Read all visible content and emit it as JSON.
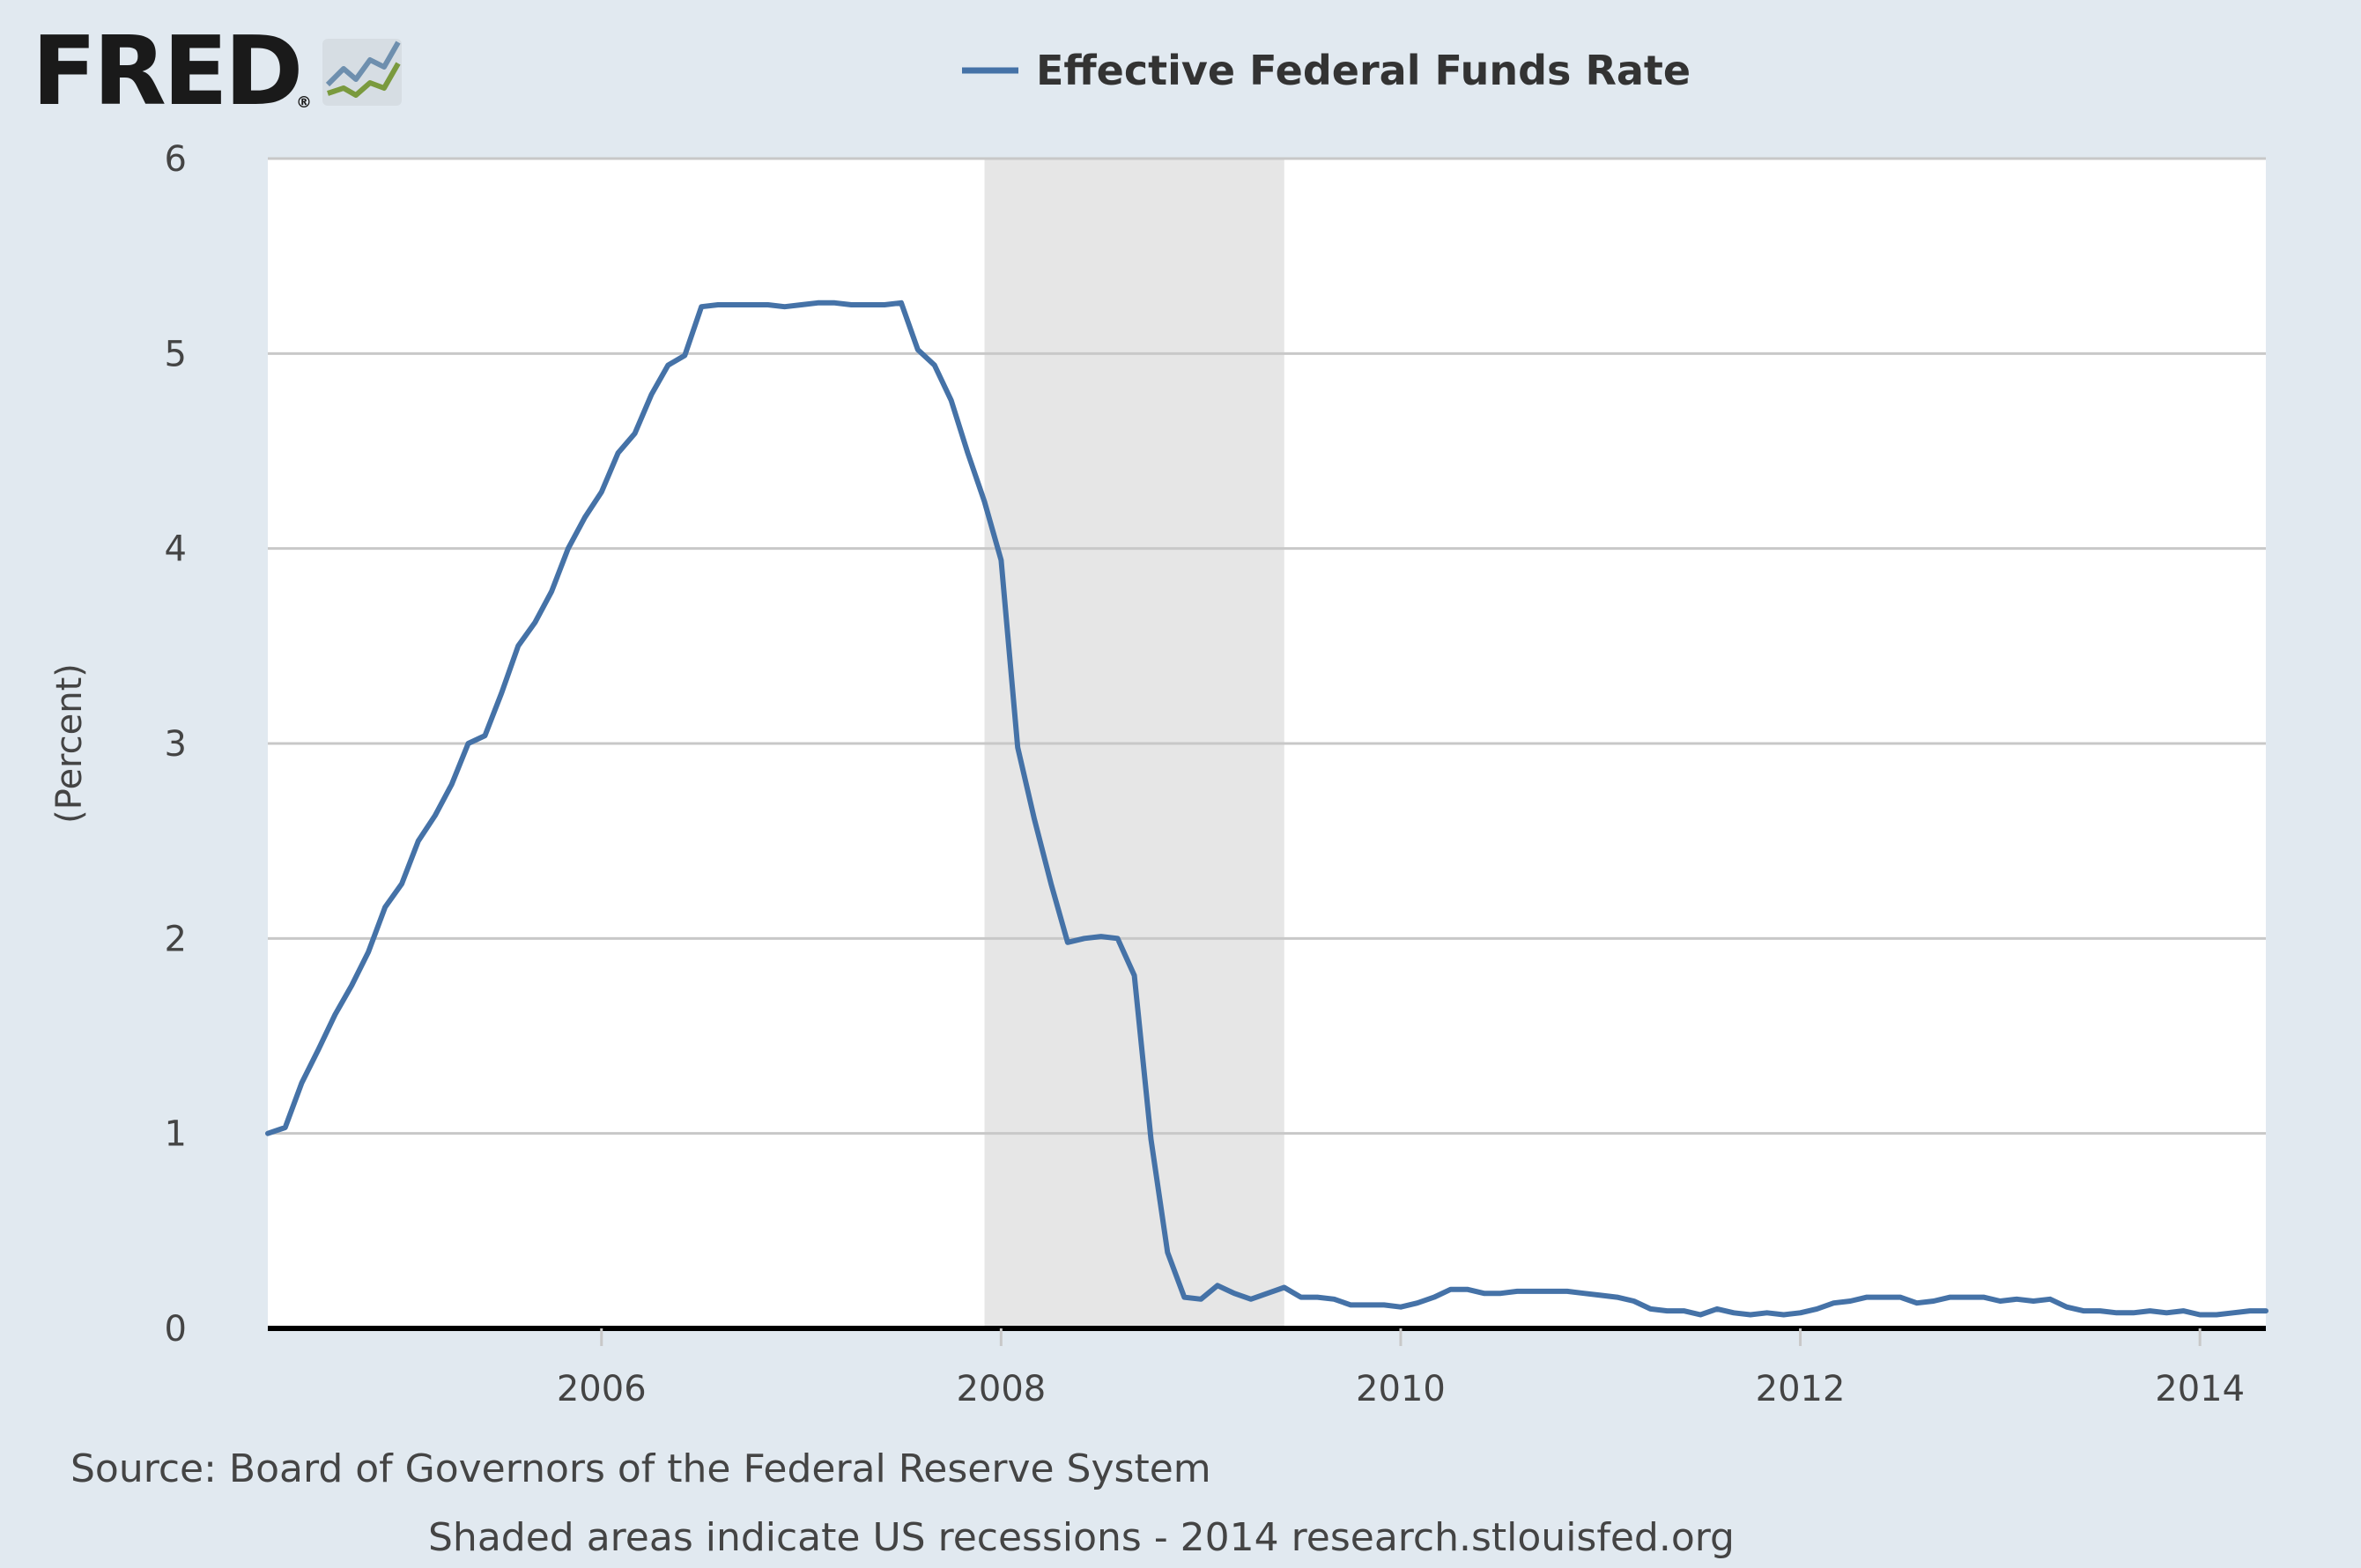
{
  "logo": {
    "text": "FRED",
    "registered": "®",
    "icon": "fred-chart-logo-icon"
  },
  "colors": {
    "background": "#e1e9f0",
    "plot_background": "#ffffff",
    "series": "#4572a7",
    "recession_shade": "#e6e6e6",
    "grid": "#c8c8c8",
    "text": "#444444"
  },
  "footer": {
    "source": "Source: Board of Governors of the Federal Reserve System",
    "note": "Shaded areas indicate US recessions - 2014 research.stlouisfed.org"
  },
  "chart_data": {
    "type": "line",
    "title": "",
    "xlabel": "",
    "ylabel": "(Percent)",
    "xlim": [
      2004.33,
      2014.33
    ],
    "ylim": [
      0,
      6
    ],
    "y_ticks": [
      0,
      1,
      2,
      3,
      4,
      5,
      6
    ],
    "x_ticks": [
      2006,
      2008,
      2010,
      2012,
      2014
    ],
    "x_tick_labels": [
      "2006",
      "2008",
      "2010",
      "2012",
      "2014"
    ],
    "grid": true,
    "legend": {
      "position": "top-center",
      "entries": [
        "Effective Federal Funds Rate"
      ]
    },
    "recessions": [
      {
        "start": 2007.917,
        "end": 2009.417
      }
    ],
    "series": [
      {
        "name": "Effective Federal Funds Rate",
        "x": [
          2004.33,
          2004.417,
          2004.5,
          2004.583,
          2004.667,
          2004.75,
          2004.833,
          2004.917,
          2005.0,
          2005.083,
          2005.167,
          2005.25,
          2005.333,
          2005.417,
          2005.5,
          2005.583,
          2005.667,
          2005.75,
          2005.833,
          2005.917,
          2006.0,
          2006.083,
          2006.167,
          2006.25,
          2006.333,
          2006.417,
          2006.5,
          2006.583,
          2006.667,
          2006.75,
          2006.833,
          2006.917,
          2007.0,
          2007.083,
          2007.167,
          2007.25,
          2007.333,
          2007.417,
          2007.5,
          2007.583,
          2007.667,
          2007.75,
          2007.833,
          2007.917,
          2008.0,
          2008.083,
          2008.167,
          2008.25,
          2008.333,
          2008.417,
          2008.5,
          2008.583,
          2008.667,
          2008.75,
          2008.833,
          2008.917,
          2009.0,
          2009.083,
          2009.167,
          2009.25,
          2009.333,
          2009.417,
          2009.5,
          2009.583,
          2009.667,
          2009.75,
          2009.833,
          2009.917,
          2010.0,
          2010.083,
          2010.167,
          2010.25,
          2010.333,
          2010.417,
          2010.5,
          2010.583,
          2010.667,
          2010.75,
          2010.833,
          2010.917,
          2011.0,
          2011.083,
          2011.167,
          2011.25,
          2011.333,
          2011.417,
          2011.5,
          2011.583,
          2011.667,
          2011.75,
          2011.833,
          2011.917,
          2012.0,
          2012.083,
          2012.167,
          2012.25,
          2012.333,
          2012.417,
          2012.5,
          2012.583,
          2012.667,
          2012.75,
          2012.833,
          2012.917,
          2013.0,
          2013.083,
          2013.167,
          2013.25,
          2013.333,
          2013.417,
          2013.5,
          2013.583,
          2013.667,
          2013.75,
          2013.833,
          2013.917,
          2014.0,
          2014.083,
          2014.167,
          2014.25,
          2014.33
        ],
        "values": [
          1.0,
          1.03,
          1.26,
          1.43,
          1.61,
          1.76,
          1.93,
          2.16,
          2.28,
          2.5,
          2.63,
          2.79,
          3.0,
          3.04,
          3.26,
          3.5,
          3.62,
          3.78,
          4.0,
          4.16,
          4.29,
          4.49,
          4.59,
          4.79,
          4.94,
          4.99,
          5.24,
          5.25,
          5.25,
          5.25,
          5.25,
          5.24,
          5.25,
          5.26,
          5.26,
          5.25,
          5.25,
          5.25,
          5.26,
          5.02,
          4.94,
          4.76,
          4.49,
          4.24,
          3.94,
          2.98,
          2.61,
          2.28,
          1.98,
          2.0,
          2.01,
          2.0,
          1.81,
          0.97,
          0.39,
          0.16,
          0.15,
          0.22,
          0.18,
          0.15,
          0.18,
          0.21,
          0.16,
          0.16,
          0.15,
          0.12,
          0.12,
          0.12,
          0.11,
          0.13,
          0.16,
          0.2,
          0.2,
          0.18,
          0.18,
          0.19,
          0.19,
          0.19,
          0.19,
          0.18,
          0.17,
          0.16,
          0.14,
          0.1,
          0.09,
          0.09,
          0.07,
          0.1,
          0.08,
          0.07,
          0.08,
          0.07,
          0.08,
          0.1,
          0.13,
          0.14,
          0.16,
          0.16,
          0.16,
          0.13,
          0.14,
          0.16,
          0.16,
          0.16,
          0.14,
          0.15,
          0.14,
          0.15,
          0.11,
          0.09,
          0.09,
          0.08,
          0.08,
          0.09,
          0.08,
          0.09,
          0.07,
          0.07,
          0.08,
          0.09,
          0.09
        ]
      }
    ]
  }
}
